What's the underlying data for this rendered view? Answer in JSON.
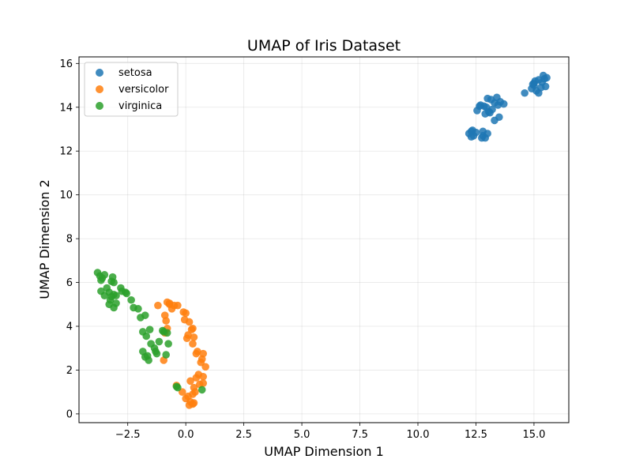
{
  "chart_data": {
    "type": "scatter",
    "title": "UMAP of Iris Dataset",
    "xlabel": "UMAP Dimension 1",
    "ylabel": "UMAP Dimension 2",
    "xlim": [
      -4.6,
      16.5
    ],
    "ylim": [
      -0.4,
      16.3
    ],
    "xticks": [
      -2.5,
      0.0,
      2.5,
      5.0,
      7.5,
      10.0,
      12.5,
      15.0
    ],
    "xtick_labels": [
      "−2.5",
      "0.0",
      "2.5",
      "5.0",
      "7.5",
      "10.0",
      "12.5",
      "15.0"
    ],
    "yticks": [
      0,
      2,
      4,
      6,
      8,
      10,
      12,
      14,
      16
    ],
    "ytick_labels": [
      "0",
      "2",
      "4",
      "6",
      "8",
      "10",
      "12",
      "14",
      "16"
    ],
    "grid": true,
    "legend_position": "top-left",
    "series": [
      {
        "name": "setosa",
        "color": "#1f77b4",
        "points": [
          [
            12.2,
            12.8
          ],
          [
            12.3,
            12.9
          ],
          [
            12.4,
            12.7
          ],
          [
            12.3,
            12.65
          ],
          [
            12.5,
            12.85
          ],
          [
            12.35,
            12.95
          ],
          [
            12.8,
            12.7
          ],
          [
            12.8,
            12.9
          ],
          [
            12.9,
            12.6
          ],
          [
            13.0,
            12.8
          ],
          [
            12.75,
            12.6
          ],
          [
            12.55,
            13.85
          ],
          [
            12.7,
            14.1
          ],
          [
            12.85,
            14.05
          ],
          [
            12.95,
            14.0
          ],
          [
            13.0,
            14.4
          ],
          [
            12.9,
            13.7
          ],
          [
            13.1,
            13.75
          ],
          [
            13.2,
            13.9
          ],
          [
            13.3,
            13.4
          ],
          [
            13.15,
            14.35
          ],
          [
            13.3,
            14.2
          ],
          [
            13.4,
            14.45
          ],
          [
            13.45,
            14.1
          ],
          [
            13.55,
            14.25
          ],
          [
            13.7,
            14.15
          ],
          [
            13.5,
            13.55
          ],
          [
            13.05,
            13.8
          ],
          [
            12.65,
            14.05
          ],
          [
            14.6,
            14.65
          ],
          [
            14.9,
            14.85
          ],
          [
            14.95,
            15.05
          ],
          [
            15.0,
            15.1
          ],
          [
            15.05,
            15.2
          ],
          [
            15.1,
            14.75
          ],
          [
            15.2,
            14.65
          ],
          [
            15.3,
            14.9
          ],
          [
            15.2,
            15.25
          ],
          [
            15.4,
            15.45
          ],
          [
            15.45,
            15.3
          ],
          [
            15.5,
            14.95
          ],
          [
            15.55,
            15.35
          ],
          [
            15.35,
            15.15
          ],
          [
            15.0,
            15.0
          ]
        ]
      },
      {
        "name": "versicolor",
        "color": "#ff7f0e",
        "points": [
          [
            -1.2,
            4.95
          ],
          [
            -0.8,
            5.1
          ],
          [
            -0.7,
            5.05
          ],
          [
            -0.6,
            4.8
          ],
          [
            -0.5,
            4.95
          ],
          [
            -0.35,
            4.95
          ],
          [
            -0.9,
            4.5
          ],
          [
            -0.85,
            4.25
          ],
          [
            -0.8,
            3.9
          ],
          [
            -0.9,
            3.7
          ],
          [
            -0.95,
            2.45
          ],
          [
            -0.1,
            4.65
          ],
          [
            0.0,
            4.6
          ],
          [
            -0.05,
            4.3
          ],
          [
            0.15,
            4.2
          ],
          [
            0.25,
            3.85
          ],
          [
            0.3,
            3.9
          ],
          [
            0.1,
            3.6
          ],
          [
            0.05,
            3.45
          ],
          [
            0.35,
            3.5
          ],
          [
            0.3,
            3.2
          ],
          [
            0.5,
            2.85
          ],
          [
            0.45,
            2.75
          ],
          [
            0.75,
            2.75
          ],
          [
            0.7,
            2.5
          ],
          [
            0.65,
            2.35
          ],
          [
            0.85,
            2.15
          ],
          [
            0.55,
            1.8
          ],
          [
            0.75,
            1.7
          ],
          [
            0.45,
            1.65
          ],
          [
            0.75,
            1.4
          ],
          [
            0.6,
            1.35
          ],
          [
            0.2,
            1.5
          ],
          [
            0.35,
            1.2
          ],
          [
            0.4,
            1.0
          ],
          [
            0.3,
            0.9
          ],
          [
            0.1,
            0.8
          ],
          [
            -0.15,
            1.0
          ],
          [
            -0.4,
            1.3
          ],
          [
            0.2,
            0.55
          ],
          [
            0.3,
            0.45
          ],
          [
            0.15,
            0.4
          ],
          [
            0.35,
            0.5
          ],
          [
            0.0,
            0.7
          ],
          [
            -0.7,
            5.0
          ]
        ]
      },
      {
        "name": "virginica",
        "color": "#2ca02c",
        "points": [
          [
            -3.8,
            6.45
          ],
          [
            -3.7,
            6.3
          ],
          [
            -3.6,
            6.2
          ],
          [
            -3.5,
            6.35
          ],
          [
            -3.65,
            6.1
          ],
          [
            -3.15,
            6.25
          ],
          [
            -3.1,
            6.0
          ],
          [
            -3.2,
            6.05
          ],
          [
            -3.65,
            5.6
          ],
          [
            -3.4,
            5.75
          ],
          [
            -3.3,
            5.55
          ],
          [
            -3.5,
            5.4
          ],
          [
            -3.2,
            5.35
          ],
          [
            -3.1,
            5.45
          ],
          [
            -3.0,
            5.4
          ],
          [
            -3.25,
            5.2
          ],
          [
            -3.3,
            5.0
          ],
          [
            -3.1,
            4.85
          ],
          [
            -3.0,
            5.05
          ],
          [
            -2.8,
            5.75
          ],
          [
            -2.75,
            5.6
          ],
          [
            -2.6,
            5.55
          ],
          [
            -2.55,
            5.5
          ],
          [
            -2.35,
            5.2
          ],
          [
            -2.25,
            4.85
          ],
          [
            -2.05,
            4.8
          ],
          [
            -1.95,
            4.4
          ],
          [
            -1.75,
            4.5
          ],
          [
            -1.85,
            3.75
          ],
          [
            -1.7,
            3.55
          ],
          [
            -1.55,
            3.85
          ],
          [
            -1.5,
            3.2
          ],
          [
            -1.35,
            3.0
          ],
          [
            -1.3,
            2.85
          ],
          [
            -1.25,
            2.75
          ],
          [
            -1.15,
            3.3
          ],
          [
            -1.85,
            2.85
          ],
          [
            -1.75,
            2.6
          ],
          [
            -1.6,
            2.45
          ],
          [
            -1.65,
            2.65
          ],
          [
            -0.95,
            3.75
          ],
          [
            -0.8,
            3.7
          ],
          [
            -0.85,
            2.7
          ],
          [
            -0.75,
            3.2
          ],
          [
            -1.0,
            3.8
          ],
          [
            -0.4,
            1.25
          ],
          [
            -0.35,
            1.2
          ],
          [
            0.7,
            1.1
          ]
        ]
      }
    ]
  }
}
